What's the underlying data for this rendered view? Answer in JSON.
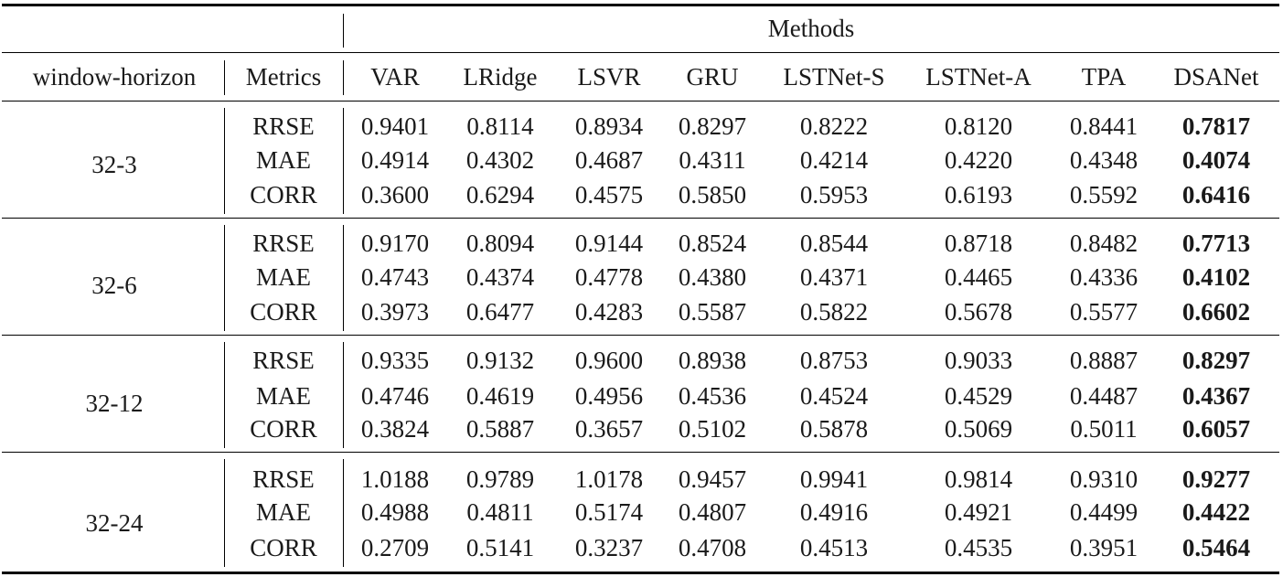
{
  "table": {
    "group_header": "Methods",
    "col_headers": [
      "window-horizon",
      "Metrics",
      "VAR",
      "LRidge",
      "LSVR",
      "GRU",
      "LSTNet-S",
      "LSTNet-A",
      "TPA",
      "DSANet"
    ],
    "groups": [
      {
        "label": "32-3",
        "rows": [
          {
            "metric": "RRSE",
            "values": [
              "0.9401",
              "0.8114",
              "0.8934",
              "0.8297",
              "0.8222",
              "0.8120",
              "0.8441",
              "0.7817"
            ]
          },
          {
            "metric": "MAE",
            "values": [
              "0.4914",
              "0.4302",
              "0.4687",
              "0.4311",
              "0.4214",
              "0.4220",
              "0.4348",
              "0.4074"
            ]
          },
          {
            "metric": "CORR",
            "values": [
              "0.3600",
              "0.6294",
              "0.4575",
              "0.5850",
              "0.5953",
              "0.6193",
              "0.5592",
              "0.6416"
            ]
          }
        ]
      },
      {
        "label": "32-6",
        "rows": [
          {
            "metric": "RRSE",
            "values": [
              "0.9170",
              "0.8094",
              "0.9144",
              "0.8524",
              "0.8544",
              "0.8718",
              "0.8482",
              "0.7713"
            ]
          },
          {
            "metric": "MAE",
            "values": [
              "0.4743",
              "0.4374",
              "0.4778",
              "0.4380",
              "0.4371",
              "0.4465",
              "0.4336",
              "0.4102"
            ]
          },
          {
            "metric": "CORR",
            "values": [
              "0.3973",
              "0.6477",
              "0.4283",
              "0.5587",
              "0.5822",
              "0.5678",
              "0.5577",
              "0.6602"
            ]
          }
        ]
      },
      {
        "label": "32-12",
        "rows": [
          {
            "metric": "RRSE",
            "values": [
              "0.9335",
              "0.9132",
              "0.9600",
              "0.8938",
              "0.8753",
              "0.9033",
              "0.8887",
              "0.8297"
            ]
          },
          {
            "metric": "MAE",
            "values": [
              "0.4746",
              "0.4619",
              "0.4956",
              "0.4536",
              "0.4524",
              "0.4529",
              "0.4487",
              "0.4367"
            ]
          },
          {
            "metric": "CORR",
            "values": [
              "0.3824",
              "0.5887",
              "0.3657",
              "0.5102",
              "0.5878",
              "0.5069",
              "0.5011",
              "0.6057"
            ]
          }
        ]
      },
      {
        "label": "32-24",
        "rows": [
          {
            "metric": "RRSE",
            "values": [
              "1.0188",
              "0.9789",
              "1.0178",
              "0.9457",
              "0.9941",
              "0.9814",
              "0.9310",
              "0.9277"
            ]
          },
          {
            "metric": "MAE",
            "values": [
              "0.4988",
              "0.4811",
              "0.5174",
              "0.4807",
              "0.4916",
              "0.4921",
              "0.4499",
              "0.4422"
            ]
          },
          {
            "metric": "CORR",
            "values": [
              "0.2709",
              "0.5141",
              "0.3237",
              "0.4708",
              "0.4513",
              "0.4535",
              "0.3951",
              "0.5464"
            ]
          }
        ]
      }
    ]
  }
}
